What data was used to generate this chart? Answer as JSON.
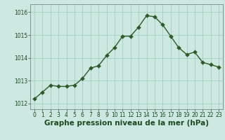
{
  "x": [
    0,
    1,
    2,
    3,
    4,
    5,
    6,
    7,
    8,
    9,
    10,
    11,
    12,
    13,
    14,
    15,
    16,
    17,
    18,
    19,
    20,
    21,
    22,
    23
  ],
  "y": [
    1012.2,
    1012.5,
    1012.8,
    1012.75,
    1012.75,
    1012.8,
    1013.1,
    1013.55,
    1013.65,
    1014.1,
    1014.45,
    1014.95,
    1014.95,
    1015.35,
    1015.85,
    1015.8,
    1015.45,
    1014.95,
    1014.45,
    1014.15,
    1014.25,
    1013.8,
    1013.7,
    1013.6
  ],
  "line_color": "#2d5a27",
  "marker_color": "#2d5a27",
  "bg_color": "#cce8e0",
  "grid_color": "#99ccbb",
  "xlabel": "Graphe pression niveau de la mer (hPa)",
  "xlabel_color": "#1a4a20",
  "tick_color": "#1a4a20",
  "ylim": [
    1011.75,
    1016.35
  ],
  "yticks": [
    1012,
    1013,
    1014,
    1015,
    1016
  ],
  "xlim": [
    -0.5,
    23.5
  ],
  "xticks": [
    0,
    1,
    2,
    3,
    4,
    5,
    6,
    7,
    8,
    9,
    10,
    11,
    12,
    13,
    14,
    15,
    16,
    17,
    18,
    19,
    20,
    21,
    22,
    23
  ],
  "marker_size": 3.0,
  "line_width": 1.0,
  "tick_fontsize": 5.5,
  "xlabel_fontsize": 7.5
}
